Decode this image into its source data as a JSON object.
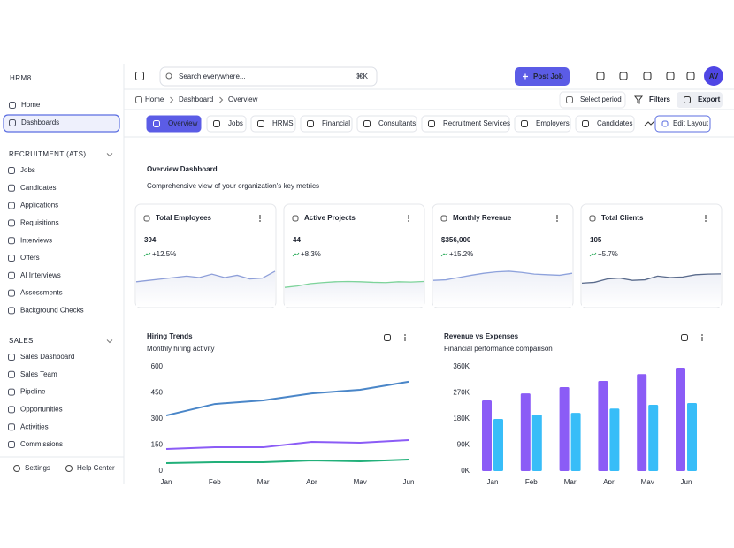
{
  "sidebar": {
    "logo": "HRM8",
    "nav": [
      "Home",
      "Dashboards"
    ],
    "sections": [
      {
        "title": "RECRUITMENT (ATS)",
        "items": [
          "Jobs",
          "Candidates",
          "Applications",
          "Requisitions",
          "Interviews",
          "Offers",
          "AI Interviews",
          "Assessments",
          "Background Checks"
        ]
      },
      {
        "title": "SALES",
        "items": [
          "Sales Dashboard",
          "Sales Team",
          "Pipeline",
          "Opportunities",
          "Activities",
          "Commissions"
        ]
      }
    ],
    "footer": [
      "Settings",
      "Help Center"
    ]
  },
  "header": {
    "search": "Search everywhere...",
    "shortcut": "⌘K",
    "button": "Post Job",
    "avatar": "AV"
  },
  "toolbar": {
    "breadcrumb": [
      "Home",
      "Dashboard",
      "Overview"
    ],
    "period": "Select period",
    "filters": "Filters",
    "export": "Export"
  },
  "tabs": {
    "items": [
      "Overview",
      "Jobs",
      "HRMS",
      "Financial",
      "Consultants",
      "Recruitment Services",
      "Employers",
      "Candidates"
    ],
    "edit": "Edit Layout"
  },
  "page": {
    "title": "Overview Dashboard",
    "subtitle": "Comprehensive view of your organization's key metrics"
  },
  "kpis": [
    {
      "title": "Total Employees",
      "value": "394",
      "change": "+12.5%",
      "color": "#8e9fd9",
      "trend": [
        35,
        40,
        45,
        50,
        55,
        50,
        62,
        50,
        58,
        45,
        48,
        72
      ]
    },
    {
      "title": "Active Projects",
      "value": "44",
      "change": "+8.3%",
      "color": "#7dd39a",
      "trend": [
        15,
        20,
        28,
        32,
        35,
        36,
        35,
        33,
        32,
        35,
        34,
        36
      ]
    },
    {
      "title": "Monthly Revenue",
      "value": "$356,000",
      "change": "+15.2%",
      "color": "#8ea2dc",
      "trend": [
        40,
        42,
        50,
        58,
        65,
        70,
        72,
        68,
        62,
        60,
        58,
        65
      ]
    },
    {
      "title": "Total Clients",
      "value": "105",
      "change": "+5.7%",
      "color": "#5a6b8c",
      "trend": [
        30,
        33,
        45,
        48,
        40,
        42,
        55,
        50,
        52,
        60,
        62,
        63
      ]
    }
  ],
  "chart_data": [
    {
      "type": "line",
      "title": "Hiring Trends",
      "subtitle": "Monthly hiring activity",
      "categories": [
        "Jan",
        "Feb",
        "Mar",
        "Apr",
        "May",
        "Jun"
      ],
      "ylim": [
        0,
        600
      ],
      "yticks": [
        0,
        150,
        300,
        450,
        600
      ],
      "grid": false,
      "series": [
        {
          "color": "#4a86c8",
          "values": [
            320,
            386,
            407,
            447,
            468,
            514
          ]
        },
        {
          "color": "#8b5cf6",
          "values": [
            127,
            137,
            137,
            168,
            163,
            178
          ]
        },
        {
          "color": "#22b07a",
          "values": [
            46,
            51,
            51,
            61,
            56,
            66
          ]
        }
      ]
    },
    {
      "type": "bar",
      "title": "Revenue vs Expenses",
      "subtitle": "Financial performance comparison",
      "categories": [
        "Jan",
        "Feb",
        "Mar",
        "Apr",
        "May",
        "Jun"
      ],
      "ylim": [
        0,
        360000
      ],
      "yticks": [
        {
          "value": 0,
          "label": "0K"
        },
        {
          "value": 90000,
          "label": "90K"
        },
        {
          "value": 180000,
          "label": "180K"
        },
        {
          "value": 270000,
          "label": "270K"
        },
        {
          "value": 360000,
          "label": "360K"
        }
      ],
      "grid": false,
      "series": [
        {
          "color": "#8b5cf6",
          "values": [
            244000,
            268000,
            290000,
            311000,
            335000,
            357000
          ]
        },
        {
          "color": "#38bdf8",
          "values": [
            180000,
            195000,
            201000,
            216000,
            229000,
            235000
          ]
        }
      ]
    }
  ]
}
